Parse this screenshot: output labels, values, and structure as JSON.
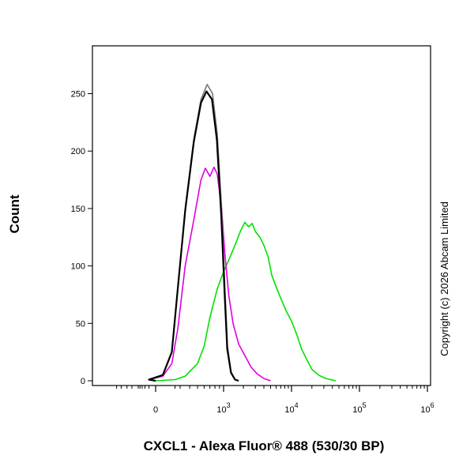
{
  "chart_data": {
    "type": "line",
    "title": "",
    "xlabel": "CXCL1 - Alexa Fluor® 488 (530/30 BP)",
    "ylabel": "Count",
    "copyright": "Copyright (c) 2026 Abcam Limited",
    "x_scale": "biexponential (logicle)",
    "x_tick_labels": [
      {
        "value": 0,
        "base": "0",
        "exp": ""
      },
      {
        "value": 1000,
        "base": "10",
        "exp": "3"
      },
      {
        "value": 10000,
        "base": "10",
        "exp": "4"
      },
      {
        "value": 100000,
        "base": "10",
        "exp": "5"
      },
      {
        "value": 1000000,
        "base": "10",
        "exp": "6"
      }
    ],
    "y_ticks": [
      0,
      50,
      100,
      150,
      200,
      250
    ],
    "ylim": [
      0,
      270
    ],
    "grid": false,
    "series": [
      {
        "color": "#00e000",
        "points": [
          [
            0,
            0
          ],
          [
            200,
            1
          ],
          [
            350,
            4
          ],
          [
            500,
            15
          ],
          [
            600,
            30
          ],
          [
            700,
            55
          ],
          [
            850,
            80
          ],
          [
            1000,
            95
          ],
          [
            1200,
            105
          ],
          [
            1500,
            118
          ],
          [
            1800,
            130
          ],
          [
            2100,
            138
          ],
          [
            2400,
            134
          ],
          [
            2700,
            137
          ],
          [
            3000,
            130
          ],
          [
            3500,
            125
          ],
          [
            4000,
            118
          ],
          [
            4600,
            108
          ],
          [
            5200,
            92
          ],
          [
            6000,
            82
          ],
          [
            7000,
            72
          ],
          [
            8500,
            60
          ],
          [
            10000,
            52
          ],
          [
            12000,
            40
          ],
          [
            14000,
            28
          ],
          [
            17000,
            18
          ],
          [
            20000,
            10
          ],
          [
            25000,
            5
          ],
          [
            32000,
            2
          ],
          [
            45000,
            0
          ]
        ]
      },
      {
        "color": "#e000e0",
        "points": [
          [
            0,
            0
          ],
          [
            -100,
            1
          ],
          [
            50,
            4
          ],
          [
            150,
            15
          ],
          [
            250,
            45
          ],
          [
            350,
            100
          ],
          [
            450,
            140
          ],
          [
            550,
            175
          ],
          [
            620,
            185
          ],
          [
            700,
            178
          ],
          [
            780,
            186
          ],
          [
            850,
            180
          ],
          [
            950,
            150
          ],
          [
            1050,
            110
          ],
          [
            1200,
            75
          ],
          [
            1400,
            50
          ],
          [
            1700,
            32
          ],
          [
            2100,
            22
          ],
          [
            2600,
            12
          ],
          [
            3200,
            6
          ],
          [
            4000,
            2
          ],
          [
            5000,
            0
          ]
        ]
      },
      {
        "color": "#777777",
        "points": [
          [
            0,
            0
          ],
          [
            -100,
            1
          ],
          [
            50,
            5
          ],
          [
            150,
            25
          ],
          [
            250,
            80
          ],
          [
            350,
            150
          ],
          [
            450,
            210
          ],
          [
            550,
            245
          ],
          [
            650,
            258
          ],
          [
            750,
            250
          ],
          [
            850,
            215
          ],
          [
            950,
            150
          ],
          [
            1050,
            80
          ],
          [
            1150,
            30
          ],
          [
            1300,
            8
          ],
          [
            1500,
            1
          ],
          [
            1700,
            0
          ]
        ]
      },
      {
        "color": "#000000",
        "points": [
          [
            0,
            0
          ],
          [
            -100,
            1
          ],
          [
            50,
            5
          ],
          [
            150,
            25
          ],
          [
            250,
            80
          ],
          [
            350,
            148
          ],
          [
            450,
            208
          ],
          [
            550,
            242
          ],
          [
            640,
            252
          ],
          [
            740,
            245
          ],
          [
            840,
            210
          ],
          [
            940,
            145
          ],
          [
            1040,
            75
          ],
          [
            1140,
            28
          ],
          [
            1300,
            7
          ],
          [
            1500,
            1
          ],
          [
            1700,
            0
          ]
        ]
      }
    ]
  }
}
